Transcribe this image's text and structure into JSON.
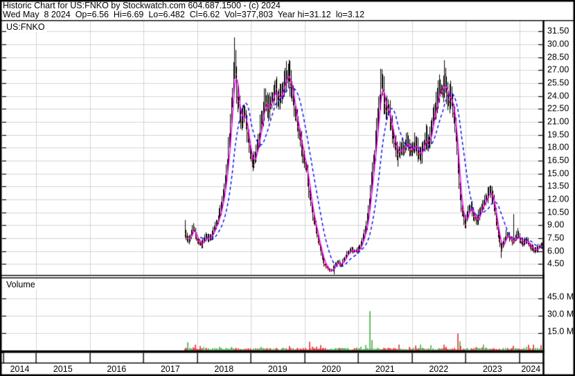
{
  "header": {
    "line1": "Historic Chart for US:FNKO by Stockwatch.com 604.687.1500 - (c) 2024",
    "line2": "Wed May  8 2024  Op=6.56  Hi=6.69  Lo=6.482  Cl=6.62  Vol=377,803  Year hi=31.12  lo=3.12"
  },
  "price_panel": {
    "symbol_label": "US:FNKO",
    "axis_labels": [
      "31.50",
      "30.00",
      "28.50",
      "27.00",
      "25.50",
      "24.00",
      "22.50",
      "21.00",
      "19.50",
      "18.00",
      "16.50",
      "15.00",
      "13.50",
      "12.00",
      "10.50",
      "9.00",
      "7.50",
      "6.00",
      "4.50"
    ]
  },
  "volume_panel": {
    "label": "Volume",
    "axis_labels": [
      "45.0 M",
      "30.0 M",
      "15.0 M"
    ],
    "axis_values_m": [
      45,
      30,
      15
    ]
  },
  "time_axis": {
    "years": [
      "2014",
      "2015",
      "2016",
      "2017",
      "2018",
      "2019",
      "2020",
      "2021",
      "2022",
      "2023",
      "2024"
    ]
  },
  "colors": {
    "background": "#ffffff",
    "frame": "#000000",
    "grid": "#d4d4d4",
    "bar": "#000000",
    "down_tick": "#e02020",
    "volume_up": "#3aa83a",
    "volume_down": "#e02020",
    "ma_fast": "#ff00ff",
    "ma_slow": "#0000ff",
    "text": "#000000"
  },
  "chart_data": {
    "type": "ohlc-bar-with-volume",
    "symbol": "US:FNKO",
    "quote": {
      "date": "Wed May 8 2024",
      "open": 6.56,
      "high": 6.69,
      "low": 6.482,
      "close": 6.62,
      "volume": "377,803",
      "year_high": 31.12,
      "year_low": 3.12
    },
    "price_axis": {
      "min": 4.5,
      "max": 31.5,
      "step": 1.5
    },
    "volume_axis": {
      "ticks_millions": [
        15,
        30,
        45
      ],
      "max_millions": 52
    },
    "x_axis": {
      "first_year_label": 2014,
      "last_year_label": 2024,
      "data_start": 2017.774,
      "data_end": 2024.432
    },
    "moving_averages": [
      {
        "name": "fast",
        "window_weeks": 5,
        "color": "#ff00ff",
        "style": "solid"
      },
      {
        "name": "slow",
        "window_weeks": 16,
        "color": "#0000ff",
        "style": "dashed"
      }
    ],
    "price_anchors": [
      [
        2017.774,
        8.0
      ],
      [
        2017.839,
        7.0
      ],
      [
        2017.916,
        8.8
      ],
      [
        2017.994,
        7.2
      ],
      [
        2018.071,
        6.6
      ],
      [
        2018.148,
        7.8
      ],
      [
        2018.226,
        7.4
      ],
      [
        2018.303,
        8.4
      ],
      [
        2018.381,
        9.6
      ],
      [
        2018.458,
        11.5
      ],
      [
        2018.535,
        15.0
      ],
      [
        2018.6,
        19.5
      ],
      [
        2018.652,
        24.5
      ],
      [
        2018.69,
        28.5
      ],
      [
        2018.729,
        24.5
      ],
      [
        2018.768,
        22.8
      ],
      [
        2018.819,
        20.6
      ],
      [
        2018.871,
        22.4
      ],
      [
        2018.923,
        20.0
      ],
      [
        2018.974,
        17.8
      ],
      [
        2019.026,
        15.7
      ],
      [
        2019.077,
        17.0
      ],
      [
        2019.129,
        18.6
      ],
      [
        2019.194,
        21.0
      ],
      [
        2019.258,
        23.6
      ],
      [
        2019.323,
        22.2
      ],
      [
        2019.387,
        23.8
      ],
      [
        2019.452,
        25.0
      ],
      [
        2019.516,
        23.4
      ],
      [
        2019.581,
        24.6
      ],
      [
        2019.645,
        25.6
      ],
      [
        2019.71,
        26.8
      ],
      [
        2019.774,
        24.0
      ],
      [
        2019.839,
        21.5
      ],
      [
        2019.903,
        19.0
      ],
      [
        2019.968,
        17.0
      ],
      [
        2020.032,
        15.2
      ],
      [
        2020.097,
        12.0
      ],
      [
        2020.161,
        9.6
      ],
      [
        2020.226,
        8.0
      ],
      [
        2020.29,
        6.0
      ],
      [
        2020.355,
        4.6
      ],
      [
        2020.419,
        4.0
      ],
      [
        2020.484,
        3.6
      ],
      [
        2020.548,
        4.2
      ],
      [
        2020.613,
        4.8
      ],
      [
        2020.677,
        4.4
      ],
      [
        2020.742,
        5.2
      ],
      [
        2020.806,
        5.8
      ],
      [
        2020.871,
        6.2
      ],
      [
        2020.935,
        5.9
      ],
      [
        2021.0,
        6.3
      ],
      [
        2021.065,
        7.0
      ],
      [
        2021.129,
        8.5
      ],
      [
        2021.194,
        11.0
      ],
      [
        2021.245,
        14.5
      ],
      [
        2021.297,
        17.5
      ],
      [
        2021.348,
        20.5
      ],
      [
        2021.387,
        23.5
      ],
      [
        2021.426,
        25.8
      ],
      [
        2021.465,
        23.8
      ],
      [
        2021.503,
        22.0
      ],
      [
        2021.542,
        23.0
      ],
      [
        2021.581,
        21.0
      ],
      [
        2021.632,
        19.5
      ],
      [
        2021.684,
        18.0
      ],
      [
        2021.735,
        17.0
      ],
      [
        2021.787,
        18.2
      ],
      [
        2021.839,
        17.4
      ],
      [
        2021.89,
        19.0
      ],
      [
        2021.942,
        18.2
      ],
      [
        2021.994,
        17.5
      ],
      [
        2022.045,
        18.4
      ],
      [
        2022.097,
        17.6
      ],
      [
        2022.148,
        16.8
      ],
      [
        2022.2,
        17.8
      ],
      [
        2022.252,
        19.2
      ],
      [
        2022.303,
        18.6
      ],
      [
        2022.355,
        20.4
      ],
      [
        2022.406,
        22.0
      ],
      [
        2022.458,
        23.5
      ],
      [
        2022.51,
        25.0
      ],
      [
        2022.561,
        24.2
      ],
      [
        2022.6,
        26.4
      ],
      [
        2022.639,
        24.6
      ],
      [
        2022.677,
        23.0
      ],
      [
        2022.716,
        24.0
      ],
      [
        2022.755,
        22.4
      ],
      [
        2022.794,
        21.0
      ],
      [
        2022.832,
        17.5
      ],
      [
        2022.871,
        13.5
      ],
      [
        2022.91,
        11.0
      ],
      [
        2022.948,
        10.0
      ],
      [
        2022.987,
        9.2
      ],
      [
        2023.039,
        10.4
      ],
      [
        2023.09,
        11.2
      ],
      [
        2023.142,
        10.2
      ],
      [
        2023.194,
        9.4
      ],
      [
        2023.245,
        10.4
      ],
      [
        2023.297,
        11.0
      ],
      [
        2023.348,
        11.8
      ],
      [
        2023.4,
        12.4
      ],
      [
        2023.452,
        13.2
      ],
      [
        2023.503,
        12.0
      ],
      [
        2023.555,
        10.0
      ],
      [
        2023.606,
        7.8
      ],
      [
        2023.658,
        6.2
      ],
      [
        2023.71,
        7.0
      ],
      [
        2023.761,
        8.0
      ],
      [
        2023.813,
        7.6
      ],
      [
        2023.865,
        7.1
      ],
      [
        2023.916,
        7.5
      ],
      [
        2023.968,
        8.0
      ],
      [
        2024.019,
        7.2
      ],
      [
        2024.071,
        6.9
      ],
      [
        2024.123,
        7.3
      ],
      [
        2024.174,
        6.8
      ],
      [
        2024.226,
        6.4
      ],
      [
        2024.277,
        6.1
      ],
      [
        2024.329,
        6.3
      ],
      [
        2024.381,
        6.6
      ],
      [
        2024.432,
        6.62
      ]
    ],
    "wicks": [
      {
        "t": 2017.774,
        "h": 9.6
      },
      {
        "t": 2018.69,
        "h": 30.8
      },
      {
        "t": 2019.71,
        "h": 28.2
      },
      {
        "t": 2020.548,
        "l": 3.3
      },
      {
        "t": 2021.426,
        "h": 27.1
      },
      {
        "t": 2021.735,
        "l": 15.8
      },
      {
        "t": 2022.6,
        "h": 27.6
      },
      {
        "t": 2023.452,
        "h": 13.6
      },
      {
        "t": 2023.658,
        "l": 5.2
      },
      {
        "t": 2023.89,
        "h": 10.3
      }
    ],
    "volume_spikes": [
      [
        2017.826,
        7.0,
        "g"
      ],
      [
        2020.097,
        7.5,
        "r"
      ],
      [
        2021.219,
        34.0,
        "g"
      ],
      [
        2021.258,
        9.0,
        "g"
      ],
      [
        2021.761,
        5.0,
        "r"
      ],
      [
        2022.161,
        5.0,
        "g"
      ],
      [
        2022.355,
        4.5,
        "g"
      ],
      [
        2022.6,
        5.0,
        "r"
      ],
      [
        2022.845,
        14.5,
        "r"
      ],
      [
        2022.884,
        8.0,
        "g"
      ],
      [
        2023.323,
        5.0,
        "g"
      ],
      [
        2023.89,
        4.0,
        "r"
      ],
      [
        2024.265,
        5.0,
        "r"
      ],
      [
        2024.406,
        4.5,
        "r"
      ]
    ]
  }
}
